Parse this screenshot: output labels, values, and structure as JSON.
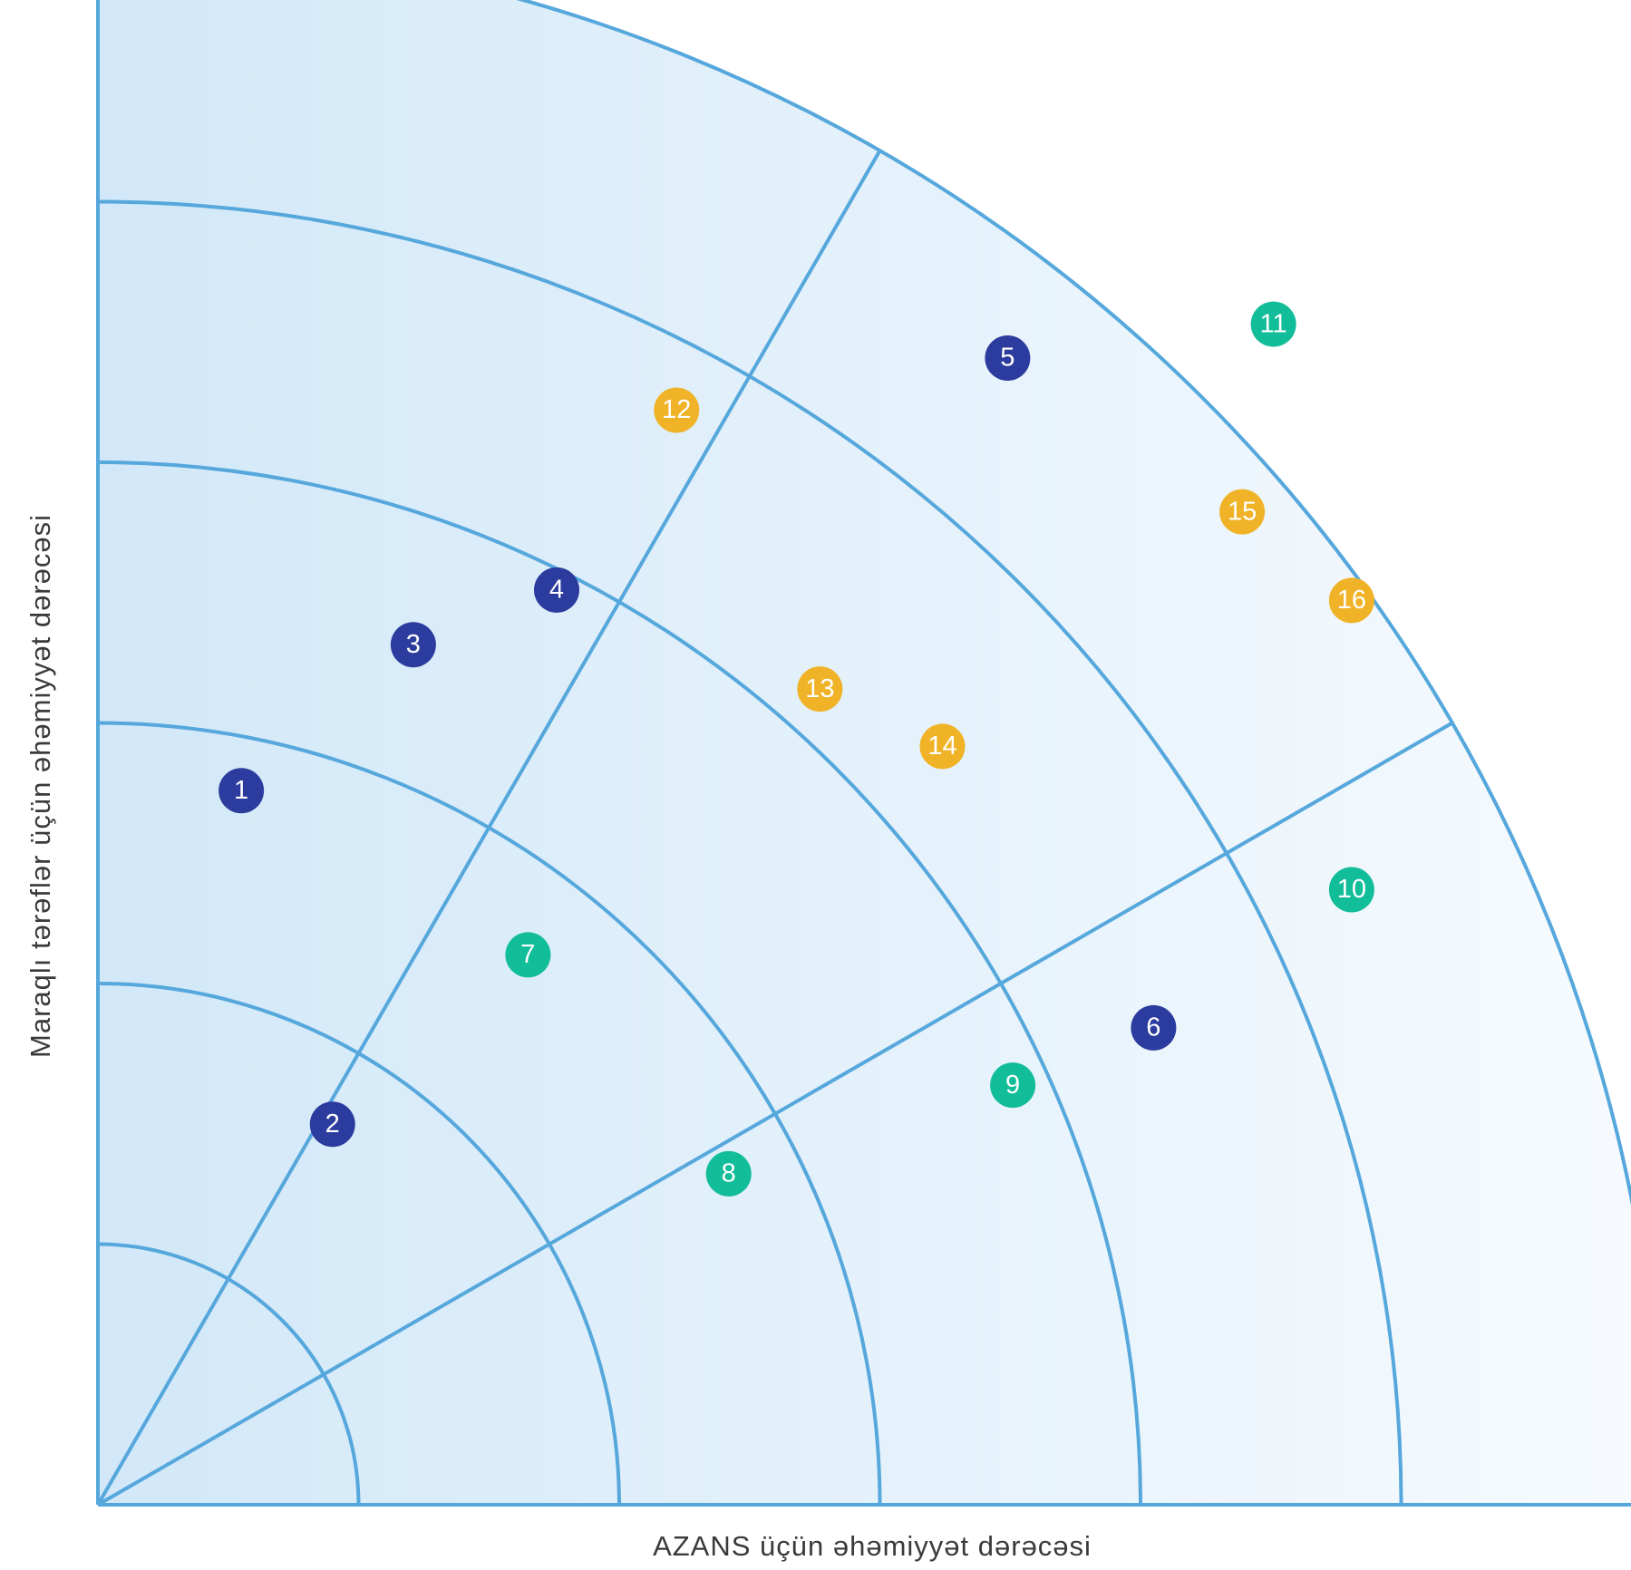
{
  "chart_data": {
    "type": "scatter",
    "coordinate_system": "polar-quadrant",
    "xlabel": "AZANS üçün əhəmiyyət dərəcəsi",
    "ylabel": "Maraqlı tərəflər üçün əhəmiyyət dərəcəsi",
    "xlim": [
      0,
      6
    ],
    "ylim": [
      0,
      6
    ],
    "rings": [
      1,
      2,
      3,
      4,
      5,
      6
    ],
    "sector_divider_angles_deg": [
      30,
      60
    ],
    "grid": true,
    "legend": "none",
    "points": [
      {
        "label": "1",
        "x": 0.55,
        "y": 2.74,
        "category": "navy"
      },
      {
        "label": "2",
        "x": 0.9,
        "y": 1.46,
        "category": "navy"
      },
      {
        "label": "3",
        "x": 1.21,
        "y": 3.3,
        "category": "navy"
      },
      {
        "label": "4",
        "x": 1.76,
        "y": 3.51,
        "category": "navy"
      },
      {
        "label": "5",
        "x": 3.49,
        "y": 4.4,
        "category": "navy"
      },
      {
        "label": "6",
        "x": 4.05,
        "y": 1.83,
        "category": "navy"
      },
      {
        "label": "7",
        "x": 1.65,
        "y": 2.11,
        "category": "green"
      },
      {
        "label": "8",
        "x": 2.42,
        "y": 1.27,
        "category": "green"
      },
      {
        "label": "9",
        "x": 3.51,
        "y": 1.61,
        "category": "green"
      },
      {
        "label": "10",
        "x": 4.81,
        "y": 2.36,
        "category": "green"
      },
      {
        "label": "11",
        "x": 4.51,
        "y": 4.53,
        "category": "green"
      },
      {
        "label": "12",
        "x": 2.22,
        "y": 4.2,
        "category": "amber"
      },
      {
        "label": "13",
        "x": 2.77,
        "y": 3.13,
        "category": "amber"
      },
      {
        "label": "14",
        "x": 3.24,
        "y": 2.91,
        "category": "amber"
      },
      {
        "label": "15",
        "x": 4.39,
        "y": 3.81,
        "category": "amber"
      },
      {
        "label": "16",
        "x": 4.81,
        "y": 3.47,
        "category": "amber"
      }
    ]
  },
  "colors": {
    "grid_line": "#55a7dc",
    "fill_inner": "#d2e8f8",
    "fill_outer": "#f7fbfe",
    "navy": "#2b3c9e",
    "green": "#12bd9a",
    "amber": "#f0b327",
    "axis_text": "#3a3a3a",
    "marker_text": "#ffffff"
  }
}
